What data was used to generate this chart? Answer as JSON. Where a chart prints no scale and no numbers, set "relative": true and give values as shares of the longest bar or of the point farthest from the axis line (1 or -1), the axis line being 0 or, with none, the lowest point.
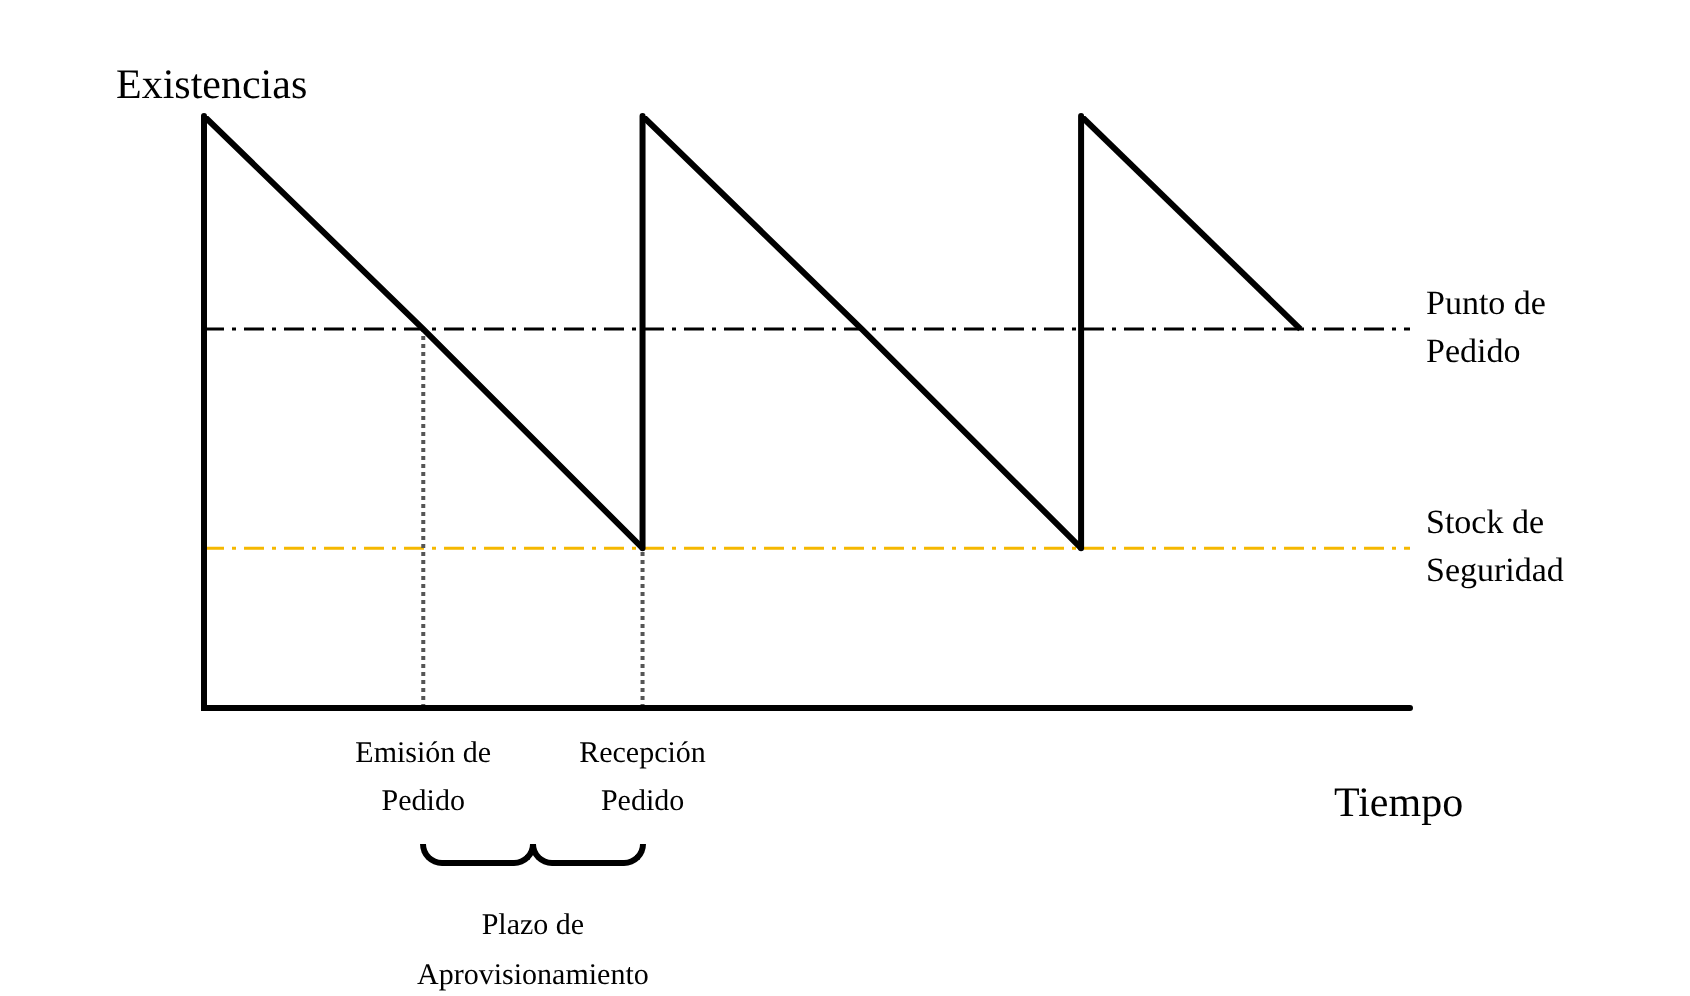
{
  "chart_data": {
    "type": "line",
    "relative": true,
    "ylabel": "Existencias",
    "xlabel": "Tiempo",
    "categories": [
      null,
      "Emisión de Pedido",
      "Recepción Pedido",
      null,
      null,
      null
    ],
    "series": [
      {
        "color": "#000000",
        "values": [
          1,
          0.64,
          0.27,
          null,
          null,
          null
        ]
      },
      {
        "color": "#000000",
        "values": [
          null,
          null,
          1,
          0.64,
          0.27,
          null
        ]
      },
      {
        "color": "#000000",
        "values": [
          null,
          null,
          null,
          null,
          1,
          0.64
        ]
      }
    ],
    "ref_lines": [
      {
        "axis": "y",
        "value": 0.64,
        "label": "Punto de Pedido",
        "color": "#000000",
        "line_style": "dashed"
      },
      {
        "axis": "y",
        "value": 0.27,
        "label": "Stock de Seguridad",
        "color": "#f5b800",
        "line_style": "dashed"
      },
      {
        "axis": "x",
        "value": "Emisión de Pedido",
        "color": "#555555",
        "line_style": "dotted"
      },
      {
        "axis": "x",
        "value": "Recepción Pedido",
        "color": "#555555",
        "line_style": "dotted"
      }
    ],
    "annotations": [
      "Plazo de Aprovisionamiento"
    ],
    "marker": "none",
    "legend": false
  }
}
